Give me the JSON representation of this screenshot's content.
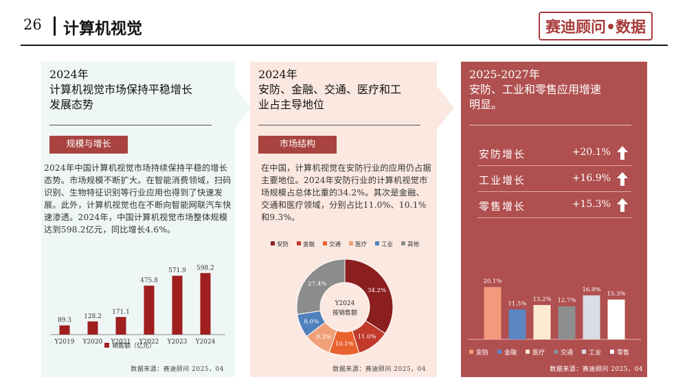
{
  "header": {
    "page_number": "26",
    "title": "计算机视觉",
    "brand": "赛迪顾问•数据"
  },
  "panel1": {
    "title_line1": "2024年",
    "title_line2": "计算机视觉市场保持平稳增长",
    "title_line3": "发展态势",
    "tag": "规模与增长",
    "text": "2024年中国计算机视觉市场持续保持平稳的增长态势。市场规模不断扩大。在智能消费领域，扫码识别、生物特征识别等行业应用也得到了快速发展。此外，计算机视觉也在不断向智能网联汽车快速渗透。2024年，中国计算机视觉市场整体规模达到598.2亿元，同比增长4.6%。",
    "source": "数据来源：赛迪顾问   2025，04"
  },
  "panel2": {
    "title_line1": "2024年",
    "title_line2": "安防、金融、交通、医疗和工",
    "title_line3": "业占主导地位",
    "tag": "市场结构",
    "text": "在中国，计算机视觉在安防行业的应用仍占据主要地位。2024年安防行业的计算机视觉市场规模占总体比重的34.2%。其次是金融、交通和医疗领域，分别占比11.0%、10.1%和9.3%。",
    "source": "数据来源：赛迪顾问   2025，04"
  },
  "panel3": {
    "title_line1": "2025-2027年",
    "title_line2": "安防、工业和零售应用增速",
    "title_line3": "明显。",
    "rows": [
      {
        "label": "安防增长",
        "value": "+20.1%"
      },
      {
        "label": "工业增长",
        "value": "+16.9%"
      },
      {
        "label": "零售增长",
        "value": "+15.3%"
      }
    ],
    "source": "数据来源：赛迪顾问   2025，04"
  },
  "chart_data": [
    {
      "type": "bar",
      "categories": [
        "Y2019",
        "Y2020",
        "Y2021",
        "Y2022",
        "Y2023",
        "Y2024"
      ],
      "values": [
        89.3,
        128.2,
        171.1,
        475.8,
        571.9,
        598.2
      ],
      "value_labels": [
        "89.3",
        "128.2",
        "171.1",
        "475.8",
        "571.9",
        "598.2"
      ],
      "legend": "销售额（亿元）",
      "color": "#a01e1e",
      "ylim": [
        0,
        700
      ]
    },
    {
      "type": "pie",
      "center_label_line1": "Y2024",
      "center_label_line2": "按销售额",
      "categories": [
        "安防",
        "金融",
        "交通",
        "医疗",
        "工业",
        "其他"
      ],
      "values": [
        34.2,
        11.0,
        10.1,
        9.3,
        8.0,
        27.4
      ],
      "value_labels": [
        "34.2%",
        "11.0%",
        "10.1%",
        "9.3%",
        "8.0%",
        "27.4%"
      ],
      "colors": [
        "#8b1f1f",
        "#c0392b",
        "#e8622f",
        "#f0a078",
        "#4f81bd",
        "#8c8c8c"
      ]
    },
    {
      "type": "bar",
      "categories": [
        "安防",
        "金融",
        "医疗",
        "交通",
        "工业",
        "零售"
      ],
      "values": [
        20.1,
        11.5,
        13.2,
        12.7,
        16.9,
        15.3
      ],
      "value_labels": [
        "20.1%",
        "11.5%",
        "13.2%",
        "12.7%",
        "16.9%",
        "15.3%"
      ],
      "colors": [
        "#f29b7c",
        "#5b86c2",
        "#fdebd0",
        "#8e8e8e",
        "#d9dee6",
        "#ffffff"
      ],
      "ylim": [
        0,
        25
      ]
    }
  ]
}
